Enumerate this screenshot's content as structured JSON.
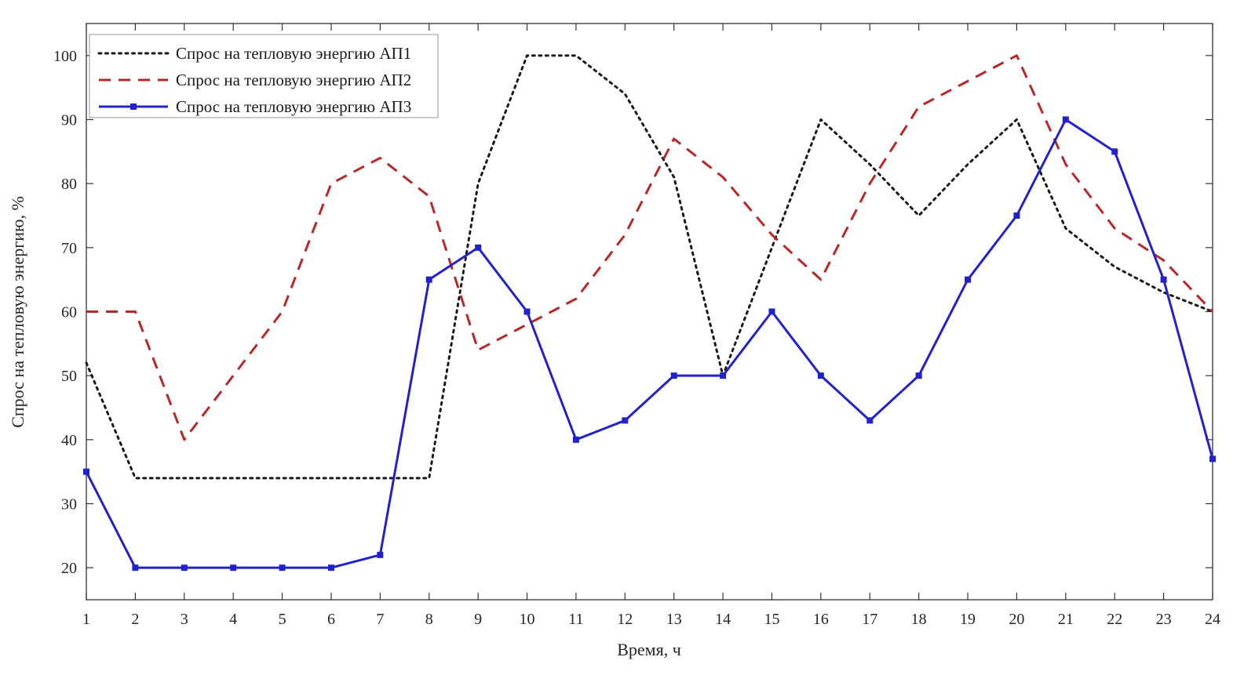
{
  "chart_data": {
    "type": "line",
    "title": "",
    "xlabel": "Время, ч",
    "ylabel": "Спрос на тепловую энергию, %",
    "x": [
      1,
      2,
      3,
      4,
      5,
      6,
      7,
      8,
      9,
      10,
      11,
      12,
      13,
      14,
      15,
      16,
      17,
      18,
      19,
      20,
      21,
      22,
      23,
      24
    ],
    "xlim": [
      1,
      24
    ],
    "ylim": [
      15,
      105
    ],
    "xticks": [
      1,
      2,
      3,
      4,
      5,
      6,
      7,
      8,
      9,
      10,
      11,
      12,
      13,
      14,
      15,
      16,
      17,
      18,
      19,
      20,
      21,
      22,
      23,
      24
    ],
    "yticks": [
      20,
      30,
      40,
      50,
      60,
      70,
      80,
      90,
      100
    ],
    "grid": false,
    "legend_position": "top-left",
    "axis_color": "#333333",
    "series": [
      {
        "name": "Спрос на тепловую энергию АП1",
        "color": "#1a1a1a",
        "style": "dotted",
        "marker": "none",
        "values": [
          52,
          34,
          34,
          34,
          34,
          34,
          34,
          34,
          80,
          100,
          100,
          94,
          81,
          50,
          70,
          90,
          83,
          75,
          83,
          90,
          73,
          67,
          63,
          60
        ]
      },
      {
        "name": "Спрос на тепловую энергию АП2",
        "color": "#b82828",
        "style": "dashed",
        "marker": "none",
        "values": [
          60,
          60,
          40,
          50,
          60,
          80,
          84,
          78,
          54,
          58,
          62,
          72,
          87,
          81,
          72,
          65,
          80,
          92,
          96,
          100,
          83,
          73,
          68,
          60
        ]
      },
      {
        "name": "Спрос на тепловую энергию АП3",
        "color": "#2222cc",
        "style": "solid",
        "marker": "square",
        "values": [
          35,
          20,
          20,
          20,
          20,
          20,
          22,
          65,
          70,
          60,
          40,
          43,
          50,
          50,
          60,
          50,
          43,
          50,
          65,
          75,
          90,
          85,
          65,
          37
        ]
      }
    ]
  }
}
